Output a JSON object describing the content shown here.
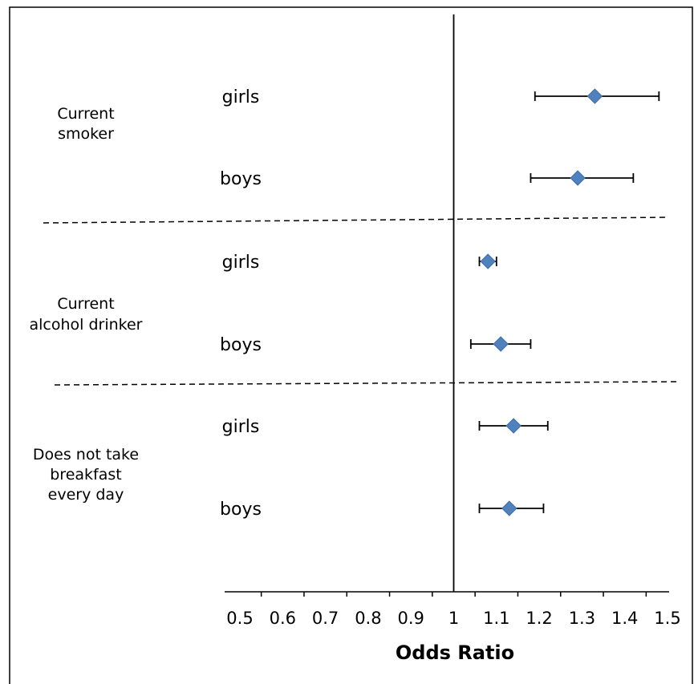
{
  "chart_data": {
    "type": "forest",
    "xlabel": "Odds Ratio",
    "xlim": [
      0.5,
      1.5
    ],
    "xticks": [
      "0.5",
      "0.6",
      "0.7",
      "0.8",
      "0.9",
      "1",
      "1.1",
      "1.2",
      "1.3",
      "1.4",
      "1.5"
    ],
    "reference_line": 1,
    "marker_color": "#4F81BD",
    "groups": [
      {
        "label_lines": [
          "Current",
          "smoker"
        ],
        "rows": [
          {
            "label": "girls",
            "or": 1.33,
            "ci_low": 1.19,
            "ci_high": 1.48
          },
          {
            "label": "boys",
            "or": 1.29,
            "ci_low": 1.18,
            "ci_high": 1.42
          }
        ]
      },
      {
        "label_lines": [
          "Current",
          "alcohol drinker"
        ],
        "rows": [
          {
            "label": "girls",
            "or": 1.08,
            "ci_low": 1.06,
            "ci_high": 1.1
          },
          {
            "label": "boys",
            "or": 1.11,
            "ci_low": 1.04,
            "ci_high": 1.18
          }
        ]
      },
      {
        "label_lines": [
          "Does not take",
          "breakfast",
          "every day"
        ],
        "rows": [
          {
            "label": "girls",
            "or": 1.14,
            "ci_low": 1.06,
            "ci_high": 1.22
          },
          {
            "label": "boys",
            "or": 1.13,
            "ci_low": 1.06,
            "ci_high": 1.21
          }
        ]
      }
    ]
  }
}
